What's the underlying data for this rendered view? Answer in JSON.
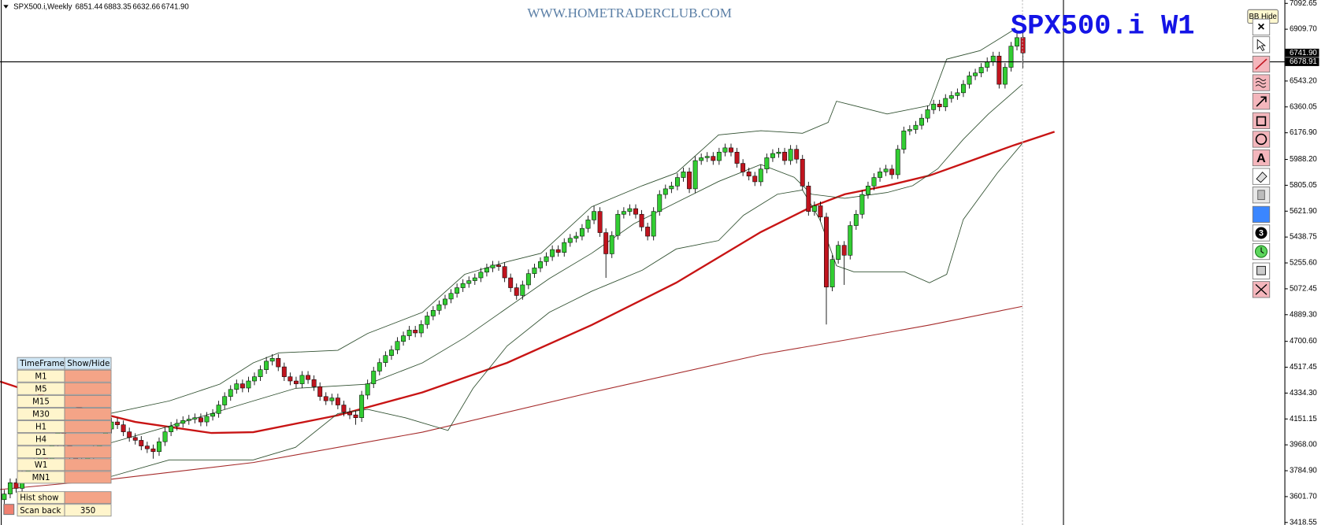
{
  "header": {
    "symbol": "SPX500.i,Weekly",
    "ohlc": [
      "6851.44",
      "6883.35",
      "6632.66",
      "6741.90"
    ]
  },
  "watermark": "WWW.HOMETRADERCLUB.COM",
  "bb_button": "BB Hide",
  "toolbar": {
    "close": "×",
    "text_tool": "A",
    "count": "3"
  },
  "timeframe_panel": {
    "headers": [
      "TimeFrame",
      "Show/Hide"
    ],
    "rows": [
      "M1",
      "M5",
      "M15",
      "M30",
      "H1",
      "H4",
      "D1",
      "W1",
      "MN1"
    ],
    "hist_show": "Hist show",
    "scan_back": "Scan back",
    "scan_back_value": 350
  },
  "chart_data": {
    "type": "candlestick",
    "title": "SPX500.i W1",
    "ylim": [
      3418.55,
      7092.65
    ],
    "yticks": [
      7092.65,
      {
        "value": 6909.7,
        "label": "6909.70"
      },
      {
        "value": 6543.2,
        "label": "6543.20"
      },
      6360.05,
      {
        "value": 6176.9,
        "label": "6176.90"
      },
      {
        "value": 5988.2,
        "label": "5988.20"
      },
      5805.05,
      {
        "value": 5621.9,
        "label": "5621.90"
      },
      5438.75,
      {
        "value": 5255.6,
        "label": "5255.60"
      },
      5072.45,
      {
        "value": 4889.3,
        "label": "4889.30"
      },
      {
        "value": 4700.6,
        "label": "4700.60"
      },
      4517.45,
      {
        "value": 4334.3,
        "label": "4334.30"
      },
      4151.15,
      {
        "value": 3968,
        "label": "3968.00"
      },
      {
        "value": 3784.9,
        "label": "3784.90"
      },
      {
        "value": 3601.7,
        "label": "3601.70"
      },
      3418.55
    ],
    "price_labels": [
      {
        "value": 6741.9,
        "label": "6741.90"
      },
      6678.91
    ],
    "up_color": "#32cd32",
    "down_color": "#c0141e",
    "open": [
      3580,
      3620,
      3700,
      3660,
      3780,
      3820,
      3860,
      3900,
      3840,
      3980,
      4070,
      3990,
      3900,
      3870,
      3860,
      3890,
      3950,
      4010,
      4080,
      4130,
      4110,
      4060,
      4020,
      4000,
      3960,
      3940,
      3920,
      3990,
      4060,
      4100,
      4120,
      4140,
      4150,
      4160,
      4130,
      4170,
      4190,
      4250,
      4310,
      4360,
      4400,
      4370,
      4420,
      4450,
      4500,
      4560,
      4580,
      4520,
      4450,
      4420,
      4400,
      4460,
      4430,
      4380,
      4310,
      4280,
      4300,
      4250,
      4200,
      4180,
      4160,
      4320,
      4400,
      4490,
      4550,
      4600,
      4640,
      4700,
      4740,
      4780,
      4760,
      4820,
      4880,
      4920,
      4960,
      5000,
      5040,
      5080,
      5110,
      5130,
      5150,
      5190,
      5220,
      5240,
      5230,
      5150,
      5080,
      5025,
      5100,
      5180,
      5220,
      5265,
      5300,
      5350,
      5330,
      5400,
      5430,
      5445,
      5500,
      5560,
      5620,
      5470,
      5320,
      5450,
      5600,
      5620,
      5640,
      5600,
      5510,
      5445,
      5620,
      5740,
      5780,
      5800,
      5860,
      5900,
      5780,
      5980,
      6000,
      6010,
      5980,
      6040,
      6070,
      6040,
      5960,
      5900,
      5870,
      5830,
      5920,
      6000,
      6030,
      6040,
      5980,
      6060,
      5990,
      5800,
      5620,
      5660,
      5580,
      5085,
      5280,
      5380,
      5310,
      5520,
      5600,
      5740,
      5800,
      5860,
      5900,
      5920,
      5880,
      6060,
      6190,
      6200,
      6230,
      6280,
      6340,
      6380,
      6360,
      6420,
      6440,
      6460,
      6520,
      6580,
      6600,
      6640,
      6680,
      6720,
      6520,
      6640,
      6790,
      6851.44
    ],
    "high": [
      3650,
      3730,
      3730,
      3810,
      3850,
      3890,
      3930,
      3930,
      4010,
      4100,
      4100,
      4020,
      3930,
      3900,
      3920,
      3980,
      4040,
      4110,
      4160,
      4160,
      4140,
      4090,
      4050,
      4030,
      3990,
      3970,
      4020,
      4090,
      4130,
      4150,
      4170,
      4180,
      4190,
      4190,
      4200,
      4220,
      4280,
      4340,
      4390,
      4430,
      4430,
      4450,
      4480,
      4530,
      4590,
      4610,
      4610,
      4550,
      4480,
      4450,
      4490,
      4490,
      4460,
      4410,
      4340,
      4330,
      4330,
      4280,
      4230,
      4210,
      4350,
      4430,
      4520,
      4580,
      4630,
      4670,
      4730,
      4770,
      4810,
      4810,
      4850,
      4910,
      4950,
      4990,
      5030,
      5070,
      5110,
      5140,
      5160,
      5180,
      5220,
      5250,
      5270,
      5270,
      5260,
      5180,
      5110,
      5130,
      5210,
      5250,
      5295,
      5330,
      5380,
      5380,
      5430,
      5460,
      5475,
      5530,
      5590,
      5660,
      5650,
      5500,
      5480,
      5630,
      5650,
      5670,
      5670,
      5630,
      5540,
      5650,
      5770,
      5810,
      5830,
      5890,
      5930,
      5930,
      6010,
      6030,
      6040,
      6040,
      6070,
      6100,
      6100,
      6070,
      5990,
      5930,
      5900,
      5950,
      6030,
      6060,
      6070,
      6070,
      6090,
      6090,
      6020,
      5830,
      5690,
      5690,
      5610,
      5310,
      5410,
      5410,
      5550,
      5630,
      5770,
      5830,
      5890,
      5930,
      5950,
      5950,
      6090,
      6220,
      6230,
      6260,
      6310,
      6370,
      6410,
      6410,
      6450,
      6470,
      6490,
      6550,
      6610,
      6630,
      6670,
      6710,
      6750,
      6750,
      6670,
      6820,
      6900,
      6883.35
    ],
    "low": [
      3550,
      3590,
      3630,
      3630,
      3750,
      3790,
      3830,
      3810,
      3810,
      3950,
      3960,
      3870,
      3840,
      3830,
      3830,
      3860,
      3920,
      3980,
      4050,
      4080,
      4030,
      3990,
      3970,
      3930,
      3910,
      3870,
      3890,
      3960,
      4030,
      4070,
      4090,
      4110,
      4120,
      4100,
      4100,
      4140,
      4160,
      4220,
      4280,
      4330,
      4340,
      4340,
      4390,
      4420,
      4470,
      4530,
      4490,
      4420,
      4390,
      4370,
      4370,
      4400,
      4350,
      4280,
      4250,
      4250,
      4220,
      4170,
      4150,
      4110,
      4130,
      4290,
      4370,
      4460,
      4520,
      4570,
      4610,
      4670,
      4710,
      4730,
      4730,
      4790,
      4850,
      4890,
      4930,
      4970,
      5010,
      5050,
      5080,
      5100,
      5120,
      5160,
      5190,
      5200,
      5120,
      5050,
      4995,
      4995,
      5070,
      5150,
      5190,
      5235,
      5270,
      5300,
      5300,
      5370,
      5400,
      5415,
      5470,
      5530,
      5440,
      5150,
      5290,
      5420,
      5570,
      5590,
      5570,
      5480,
      5415,
      5415,
      5590,
      5710,
      5750,
      5770,
      5830,
      5750,
      5750,
      5950,
      5970,
      5950,
      5950,
      6010,
      6010,
      5930,
      5870,
      5840,
      5800,
      5800,
      5890,
      5970,
      6000,
      5950,
      5950,
      5960,
      5770,
      5590,
      5590,
      5550,
      4820,
      5055,
      5250,
      5100,
      5280,
      5490,
      5570,
      5710,
      5770,
      5830,
      5870,
      5850,
      5850,
      6030,
      6160,
      6170,
      6200,
      6250,
      6310,
      6330,
      6330,
      6390,
      6410,
      6430,
      6490,
      6550,
      6570,
      6610,
      6650,
      6490,
      6490,
      6610,
      6760,
      6632.66
    ],
    "close": [
      3620,
      3700,
      3660,
      3780,
      3820,
      3860,
      3900,
      3840,
      3980,
      4070,
      3990,
      3900,
      3870,
      3860,
      3890,
      3950,
      4010,
      4080,
      4130,
      4110,
      4060,
      4020,
      4000,
      3960,
      3940,
      3920,
      3990,
      4060,
      4100,
      4120,
      4140,
      4150,
      4160,
      4130,
      4170,
      4190,
      4250,
      4310,
      4360,
      4400,
      4370,
      4420,
      4450,
      4500,
      4560,
      4580,
      4520,
      4450,
      4420,
      4400,
      4460,
      4430,
      4380,
      4310,
      4280,
      4300,
      4250,
      4200,
      4180,
      4160,
      4320,
      4400,
      4490,
      4550,
      4600,
      4640,
      4700,
      4740,
      4780,
      4760,
      4820,
      4880,
      4920,
      4960,
      5000,
      5040,
      5080,
      5110,
      5130,
      5150,
      5190,
      5220,
      5240,
      5230,
      5150,
      5080,
      5025,
      5100,
      5180,
      5220,
      5265,
      5300,
      5350,
      5330,
      5400,
      5430,
      5445,
      5500,
      5560,
      5620,
      5470,
      5320,
      5450,
      5600,
      5620,
      5640,
      5600,
      5510,
      5445,
      5620,
      5740,
      5780,
      5800,
      5860,
      5900,
      5780,
      5980,
      6000,
      6010,
      5980,
      6040,
      6070,
      6040,
      5960,
      5900,
      5870,
      5830,
      5920,
      6000,
      6030,
      6040,
      5980,
      6060,
      5990,
      5800,
      5620,
      5660,
      5580,
      5085,
      5280,
      5380,
      5310,
      5520,
      5600,
      5740,
      5800,
      5860,
      5900,
      5920,
      5880,
      6060,
      6190,
      6200,
      6230,
      6280,
      6340,
      6380,
      6360,
      6420,
      6440,
      6460,
      6520,
      6580,
      6600,
      6640,
      6680,
      6720,
      6520,
      6640,
      6790,
      6850,
      6741.9
    ],
    "lines": [
      {
        "color": "#a52a2a",
        "width": 1,
        "x": [
          -0.7,
          17.7,
          41.8,
          70.2,
          98.6,
          127,
          141.1,
          155.3,
          170.9
        ],
        "values": [
          3652,
          3723,
          3843,
          4058,
          4339,
          4607,
          4709,
          4816,
          4948
        ]
      },
      {
        "color": "#c81414",
        "width": 2.2,
        "x": [
          -0.7,
          13.5,
          22,
          34.8,
          41.8,
          56,
          70.2,
          84.4,
          98.6,
          112.8,
          127,
          135.5,
          141.1,
          148.2,
          155.3,
          162.4,
          169.5,
          176.3
        ],
        "values": [
          4416,
          4219,
          4130,
          4052,
          4058,
          4177,
          4339,
          4548,
          4816,
          5115,
          5474,
          5653,
          5742,
          5802,
          5874,
          5981,
          6089,
          6184
        ]
      },
      {
        "color": "#2f4f2f",
        "width": 0.8,
        "x": [
          17.7,
          27.7,
          36.2,
          41.8,
          46.1,
          56,
          61,
          70.2,
          77.3,
          84.4,
          90.1,
          98.6,
          107.1,
          112.8,
          119.9,
          127,
          134,
          138.3,
          139.7,
          142.6,
          148.2,
          155.3,
          158.2,
          163.8,
          169.5
        ],
        "values": [
          4189,
          4279,
          4398,
          4548,
          4619,
          4637,
          4757,
          4906,
          5175,
          5264,
          5324,
          5653,
          5802,
          5892,
          6161,
          6191,
          6173,
          6250,
          6400,
          6370,
          6310,
          6370,
          6698,
          6758,
          6907
        ]
      },
      {
        "color": "#2f4f2f",
        "width": 0.8,
        "x": [
          17.7,
          27.7,
          41.8,
          48.9,
          61,
          70.2,
          77.3,
          84.4,
          91.5,
          98.6,
          105.7,
          112.8,
          119.9,
          127,
          132.6,
          135.5,
          141.1,
          148.2,
          152.5,
          156.7,
          161,
          165.2,
          170.9
        ],
        "values": [
          3980,
          4100,
          4279,
          4368,
          4398,
          4548,
          4727,
          4936,
          5145,
          5324,
          5533,
          5683,
          5832,
          5952,
          5862,
          5742,
          5713,
          5754,
          5802,
          5922,
          6131,
          6310,
          6519
        ]
      },
      {
        "color": "#2f4f2f",
        "width": 0.8,
        "x": [
          17.7,
          27.7,
          41.8,
          48.9,
          56,
          61,
          67.4,
          74.5,
          78.7,
          84.4,
          91.5,
          98.6,
          107.1,
          112.8,
          119.9,
          124.1,
          129.8,
          134,
          136.9,
          139.7,
          142.6,
          151.1,
          155.3,
          158.2,
          161,
          166.7,
          170.9
        ],
        "values": [
          3741,
          3861,
          3861,
          3950,
          4189,
          4219,
          4159,
          4070,
          4368,
          4667,
          4906,
          5055,
          5204,
          5354,
          5414,
          5593,
          5742,
          5772,
          5563,
          5235,
          5193,
          5193,
          5115,
          5175,
          5563,
          5892,
          6101
        ]
      }
    ]
  }
}
